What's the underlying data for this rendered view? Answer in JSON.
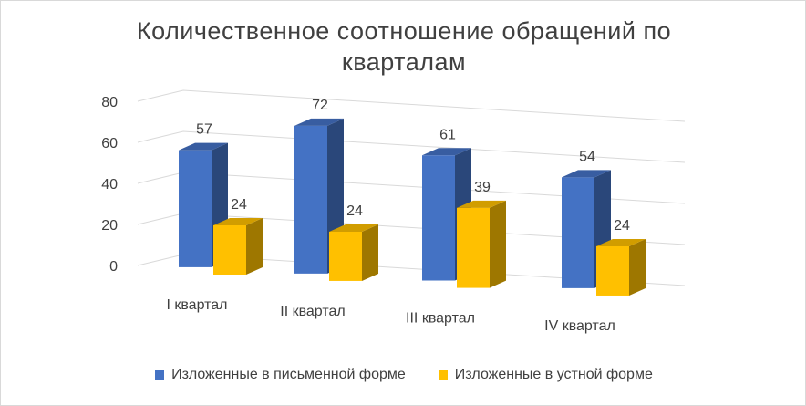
{
  "chart_data": {
    "type": "bar",
    "title_lines": [
      "Количественное соотношение обращений по",
      "кварталам"
    ],
    "categories": [
      "I квартал",
      "II квартал",
      "III квартал",
      "IV квартал"
    ],
    "series": [
      {
        "name": "Изложенные в письменной форме",
        "values": [
          57,
          72,
          61,
          54
        ],
        "color": "#4472C4"
      },
      {
        "name": "Изложенные в устной форме",
        "values": [
          24,
          24,
          39,
          24
        ],
        "color": "#FFC000"
      }
    ],
    "y_ticks": [
      "0",
      "20",
      "40",
      "60",
      "80"
    ],
    "ylim": [
      0,
      80
    ],
    "grid": true,
    "legend_position": "bottom",
    "style": "3d-clustered-column"
  }
}
